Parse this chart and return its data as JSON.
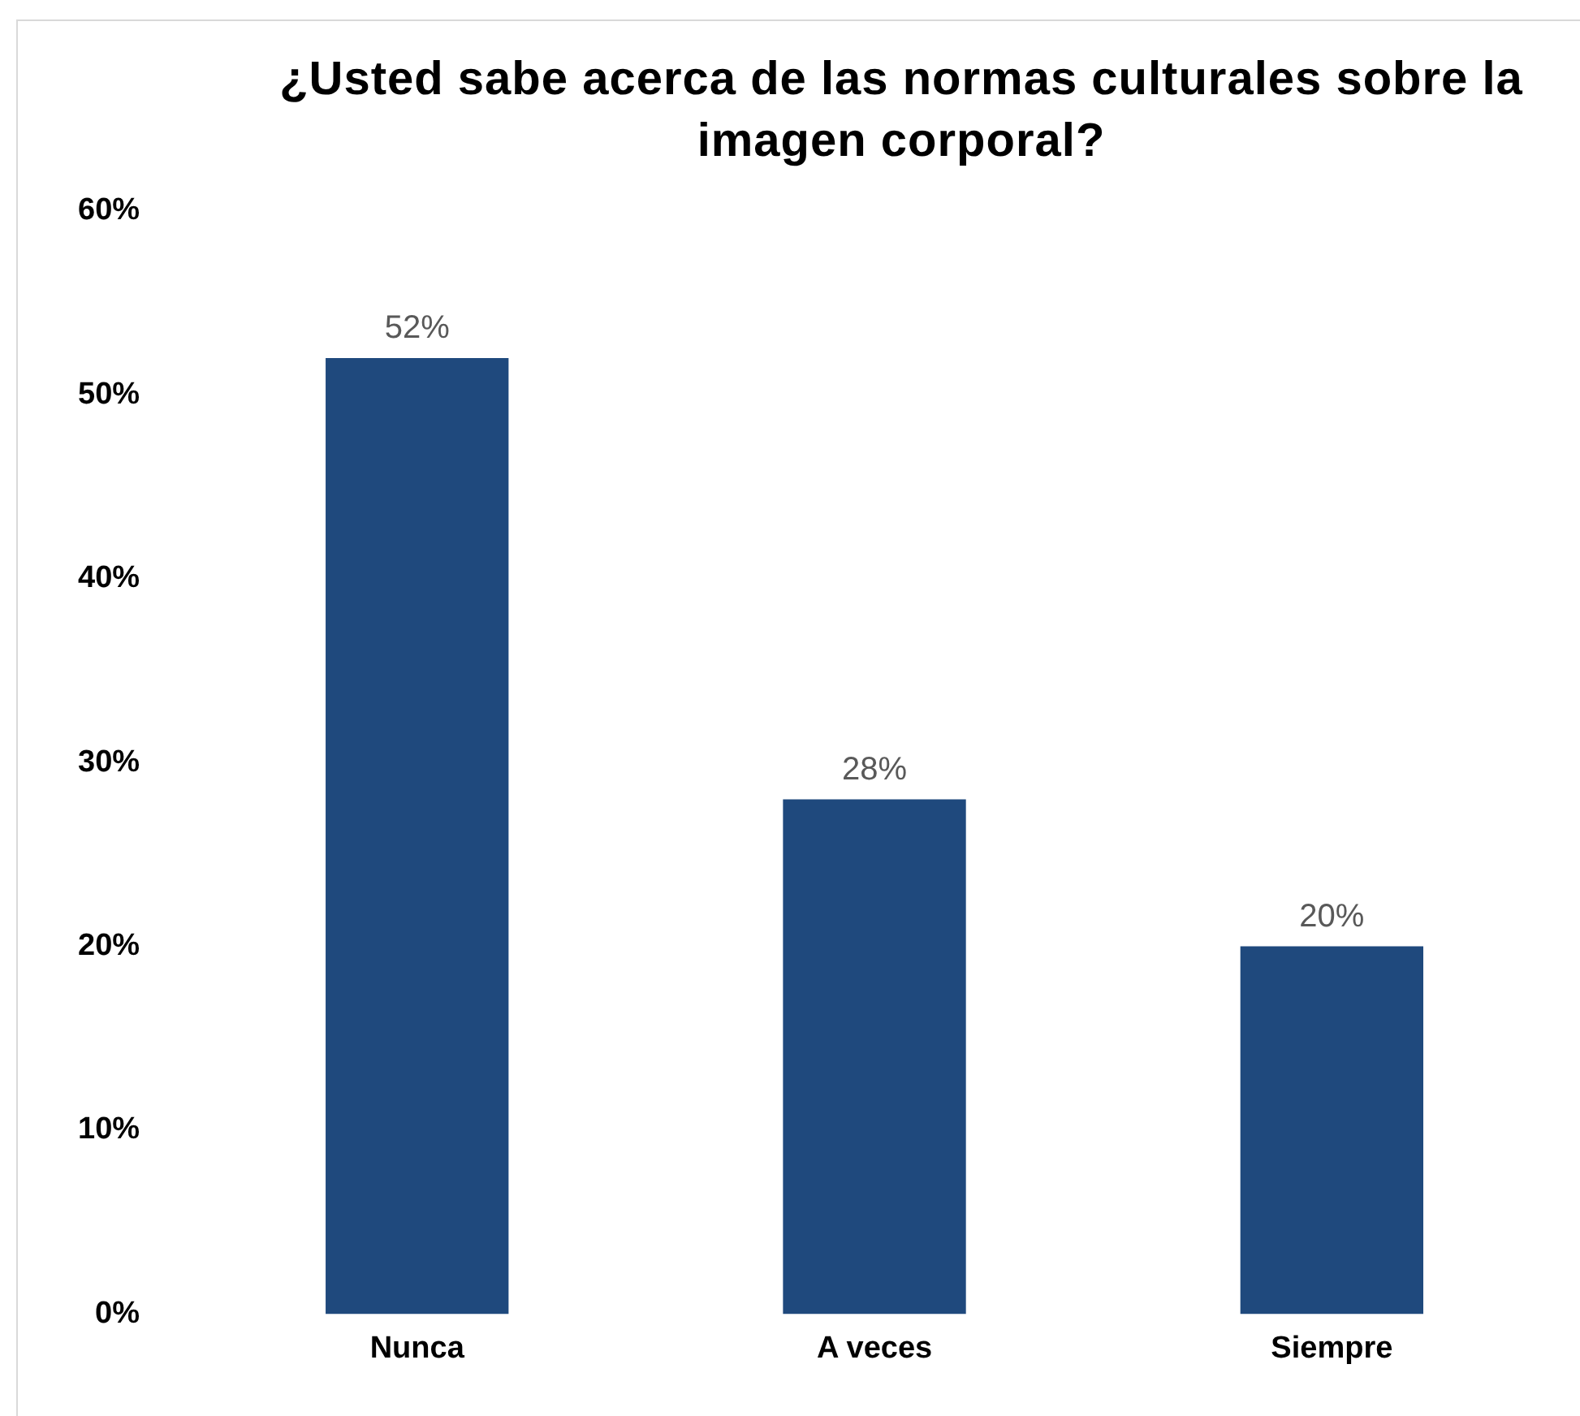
{
  "chart_data": {
    "type": "bar",
    "title": "¿Usted sabe acerca de las normas culturales sobre la imagen corporal?",
    "categories": [
      "Nunca",
      "A veces",
      "Siempre"
    ],
    "values": [
      52,
      28,
      20
    ],
    "value_labels": [
      "52%",
      "28%",
      "20%"
    ],
    "color": "#1f497d",
    "ylim": [
      0,
      60
    ],
    "yticks": [
      {
        "value": 0,
        "label": "0%"
      },
      {
        "value": 10,
        "label": "10%"
      },
      {
        "value": 20,
        "label": "20%"
      },
      {
        "value": 30,
        "label": "30%"
      },
      {
        "value": 40,
        "label": "40%"
      },
      {
        "value": 50,
        "label": "50%"
      },
      {
        "value": 60,
        "label": "60%"
      }
    ],
    "grid": false,
    "legend": false
  }
}
